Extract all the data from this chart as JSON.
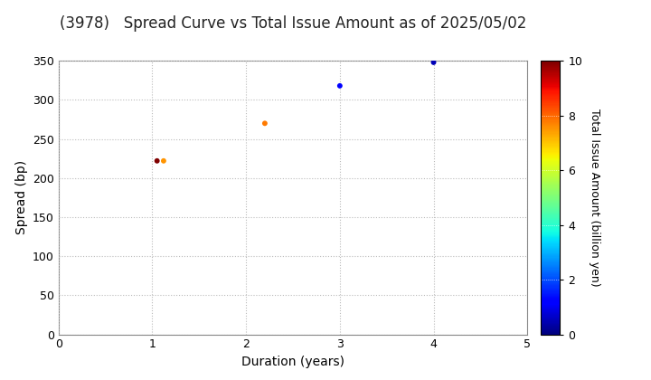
{
  "title": "(3978)   Spread Curve vs Total Issue Amount as of 2025/05/02",
  "xlabel": "Duration (years)",
  "ylabel": "Spread (bp)",
  "colorbar_label": "Total Issue Amount (billion yen)",
  "xlim": [
    0,
    5
  ],
  "ylim": [
    0,
    350
  ],
  "xticks": [
    0,
    1,
    2,
    3,
    4,
    5
  ],
  "yticks": [
    0,
    50,
    100,
    150,
    200,
    250,
    300,
    350
  ],
  "points": [
    {
      "duration": 1.05,
      "spread": 222,
      "issue_amount": 10.0
    },
    {
      "duration": 1.12,
      "spread": 222,
      "issue_amount": 7.5
    },
    {
      "duration": 2.2,
      "spread": 270,
      "issue_amount": 7.8
    },
    {
      "duration": 3.0,
      "spread": 318,
      "issue_amount": 1.2
    },
    {
      "duration": 4.0,
      "spread": 348,
      "issue_amount": 0.5
    }
  ],
  "color_min": 0,
  "color_max": 10,
  "marker_size": 18,
  "background_color": "#ffffff",
  "grid_color": "#bbbbbb",
  "title_fontsize": 12,
  "axis_fontsize": 10,
  "colorbar_tick_fontsize": 9
}
